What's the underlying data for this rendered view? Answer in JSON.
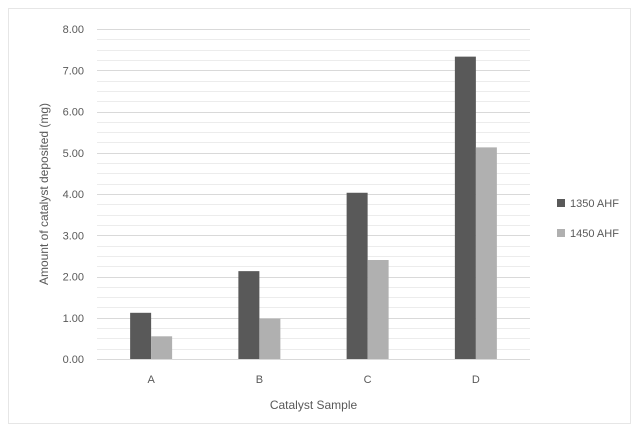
{
  "chart_data": {
    "type": "bar",
    "title": "",
    "xlabel": "Catalyst Sample",
    "ylabel": "Amount  of catalyst deposited (mg)",
    "categories": [
      "A",
      "B",
      "C",
      "D"
    ],
    "series": [
      {
        "name": "1350 AHF",
        "values": [
          1.12,
          2.13,
          4.03,
          7.33
        ],
        "color": "#595959"
      },
      {
        "name": "1450 AHF",
        "values": [
          0.55,
          0.98,
          2.4,
          5.13
        ],
        "color": "#b0b0b0"
      }
    ],
    "ylim": [
      0,
      8
    ],
    "yticks": [
      "0.00",
      "1.00",
      "2.00",
      "3.00",
      "4.00",
      "5.00",
      "6.00",
      "7.00",
      "8.00"
    ],
    "grid": true,
    "legend_position": "right"
  }
}
